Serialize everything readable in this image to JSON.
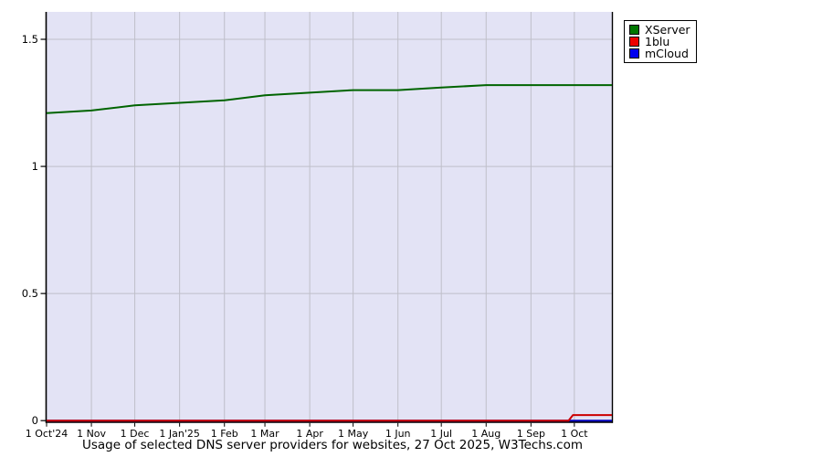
{
  "title": "Usage of selected DNS server providers for websites, 27 Oct 2025, W3Techs.com",
  "colors": {
    "page_background": "#ffffff",
    "plot_background": "#e3e3f5",
    "gridline": "#bfbfc9",
    "axis": "#000000",
    "tick_text": "#000000"
  },
  "chart_data": {
    "type": "line",
    "title": "Usage of selected DNS server providers for websites, 27 Oct 2025, W3Techs.com",
    "xlabel": "",
    "ylabel": "",
    "ylim": [
      0,
      1.6
    ],
    "y_ticks": [
      0,
      0.5,
      1,
      1.5
    ],
    "y_tick_labels": [
      "0",
      "0.5",
      "1",
      "1.5"
    ],
    "x_tick_labels": [
      "1 Oct'24",
      "1 Nov",
      "1 Dec",
      "1 Jan'25",
      "1 Feb",
      "1 Mar",
      "1 Apr",
      "1 May",
      "1 Jun",
      "1 Jul",
      "1 Aug",
      "1 Sep",
      "1 Oct"
    ],
    "x_tick_days": [
      0,
      31,
      61,
      92,
      123,
      151,
      182,
      212,
      243,
      273,
      304,
      335,
      365
    ],
    "x_total_days": 391,
    "grid": true,
    "legend_position": "outside-top-right",
    "series": [
      {
        "name": "XServer",
        "line_color": "#006400",
        "legend_color": "#007700",
        "points": [
          [
            0,
            1.21
          ],
          [
            31,
            1.22
          ],
          [
            61,
            1.24
          ],
          [
            92,
            1.25
          ],
          [
            123,
            1.26
          ],
          [
            151,
            1.28
          ],
          [
            182,
            1.29
          ],
          [
            212,
            1.3
          ],
          [
            243,
            1.3
          ],
          [
            273,
            1.31
          ],
          [
            304,
            1.32
          ],
          [
            335,
            1.32
          ],
          [
            365,
            1.32
          ],
          [
            391,
            1.32
          ]
        ]
      },
      {
        "name": "1blu",
        "line_color": "#cc0000",
        "legend_color": "#ee0000",
        "points": [
          [
            0,
            0
          ],
          [
            335,
            0
          ],
          [
            361,
            0
          ],
          [
            364,
            0.022
          ],
          [
            391,
            0.022
          ]
        ]
      },
      {
        "name": "mCloud",
        "line_color": "#0000bb",
        "legend_color": "#0000ee",
        "points": [
          [
            0,
            0
          ],
          [
            391,
            0
          ]
        ]
      }
    ]
  }
}
